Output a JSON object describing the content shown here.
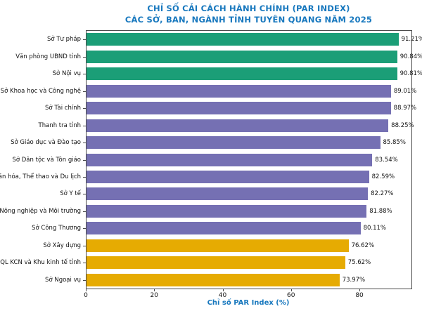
{
  "header": {
    "title_line1": "CHỈ SỐ CẢI CÁCH HÀNH CHÍNH (PAR INDEX)",
    "title_line2": "CÁC SỞ, BAN, NGÀNH TỈNH TUYÊN QUANG NĂM 2025"
  },
  "colors": {
    "title_blue": "#1878be",
    "group_high_green": "#1b9e77",
    "group_mid_purple": "#7570b3",
    "group_low_yellow": "#e6ab02",
    "axis_line": "#4a4a4a",
    "text": "#111111"
  },
  "chart_data": {
    "type": "bar",
    "orientation": "horizontal",
    "title": "CHỈ SỐ CẢI CÁCH HÀNH CHÍNH (PAR INDEX) CÁC SỞ, BAN, NGÀNH TỈNH TUYÊN QUANG NĂM 2025",
    "xlabel": "Chỉ số PAR Index (%)",
    "ylabel": "",
    "xlim": [
      0,
      95
    ],
    "xticks": [
      0,
      20,
      40,
      60,
      80
    ],
    "grid": false,
    "legend": "none",
    "categories": [
      "Sở Tư pháp",
      "Văn phòng UBND tỉnh",
      "Sở Nội vụ",
      "Sở Khoa học và Công nghệ",
      "Sở Tài chính",
      "Thanh tra tỉnh",
      "Sở Giáo dục và Đào tạo",
      "Sở Dân tộc và Tôn giáo",
      "Sở Văn hóa, Thể thao và Du lịch",
      "Sở Y tế",
      "Sở Nông nghiệp và Môi trường",
      "Sở Công Thương",
      "Sở Xây dựng",
      "BQL KCN và Khu kinh tế tỉnh",
      "Sở Ngoại vụ"
    ],
    "values": [
      91.21,
      90.84,
      90.81,
      89.01,
      88.97,
      88.25,
      85.85,
      83.54,
      82.59,
      82.27,
      81.88,
      80.11,
      76.62,
      75.62,
      73.97
    ],
    "value_labels": [
      "91.21%",
      "90.84%",
      "90.81%",
      "89.01%",
      "88.97%",
      "88.25%",
      "85.85%",
      "83.54%",
      "82.59%",
      "82.27%",
      "81.88%",
      "80.11%",
      "76.62%",
      "75.62%",
      "73.97%"
    ],
    "bar_colors": [
      "#1b9e77",
      "#1b9e77",
      "#1b9e77",
      "#7570b3",
      "#7570b3",
      "#7570b3",
      "#7570b3",
      "#7570b3",
      "#7570b3",
      "#7570b3",
      "#7570b3",
      "#7570b3",
      "#e6ab02",
      "#e6ab02",
      "#e6ab02"
    ]
  }
}
